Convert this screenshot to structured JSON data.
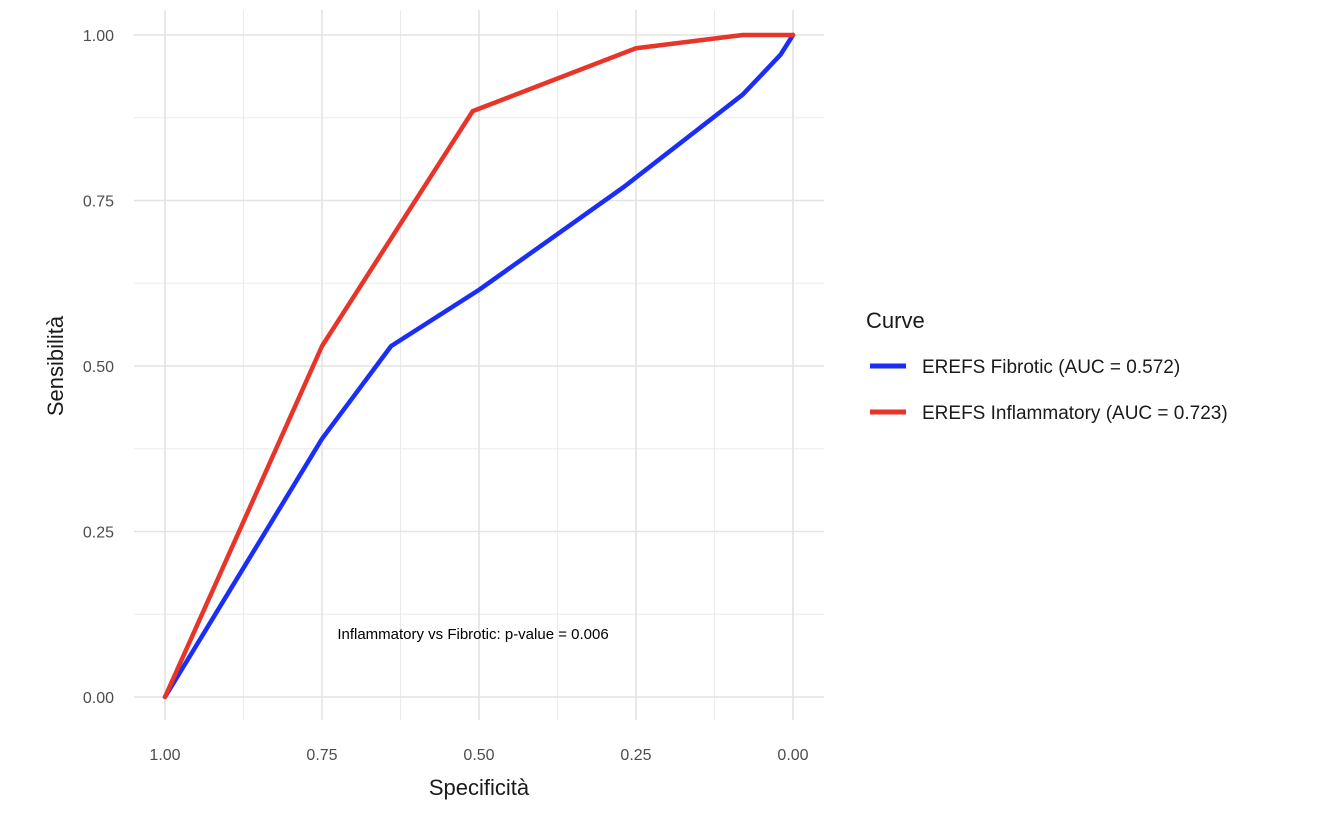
{
  "chart_data": {
    "type": "line",
    "title": "",
    "xlabel": "Specificità",
    "ylabel": "Sensibilità",
    "xlim": [
      1.0,
      0.0
    ],
    "ylim": [
      0.0,
      1.0
    ],
    "x_reversed": true,
    "x_ticks": [
      "1.00",
      "0.75",
      "0.50",
      "0.25",
      "0.00"
    ],
    "x_tick_values": [
      1.0,
      0.75,
      0.5,
      0.25,
      0.0
    ],
    "y_ticks": [
      "0.00",
      "0.25",
      "0.50",
      "0.75",
      "1.00"
    ],
    "y_tick_values": [
      0.0,
      0.25,
      0.5,
      0.75,
      1.0
    ],
    "grid": true,
    "legend": {
      "title": "Curve",
      "position": "right"
    },
    "annotation": "Inflammatory vs Fibrotic: p-value = 0.006",
    "series": [
      {
        "name": "EREFS Fibrotic (AUC = 0.572)",
        "color": "#1a2ef5",
        "specificity": [
          1.0,
          0.75,
          0.64,
          0.5,
          0.27,
          0.08,
          0.02,
          0.0
        ],
        "sensitivity": [
          0.0,
          0.39,
          0.53,
          0.615,
          0.77,
          0.91,
          0.97,
          1.0
        ]
      },
      {
        "name": "EREFS Inflammatory (AUC = 0.723)",
        "color": "#e8352a",
        "specificity": [
          1.0,
          0.75,
          0.51,
          0.25,
          0.08,
          0.0
        ],
        "sensitivity": [
          0.0,
          0.53,
          0.885,
          0.98,
          1.0,
          1.0
        ]
      }
    ]
  }
}
